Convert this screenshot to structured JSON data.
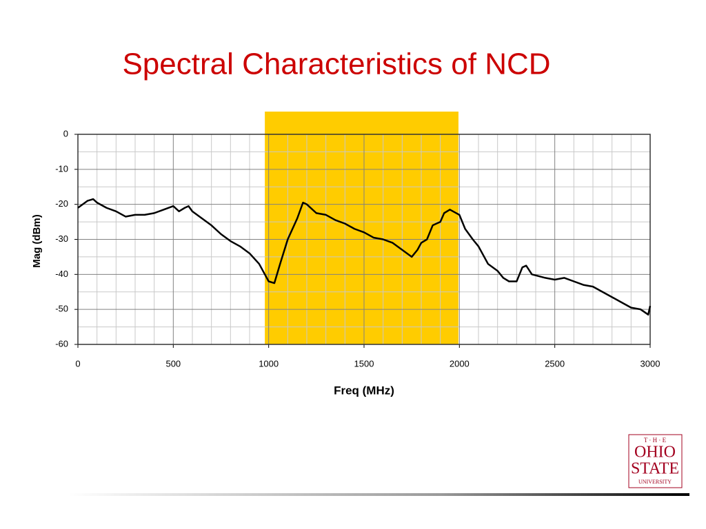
{
  "chart_data": {
    "type": "line",
    "title": "Spectral Characteristics of NCD",
    "xlabel": "Freq (MHz)",
    "ylabel": "Mag (dBm)",
    "x": [
      0,
      50,
      80,
      100,
      150,
      200,
      250,
      300,
      350,
      400,
      450,
      500,
      530,
      560,
      580,
      600,
      650,
      700,
      750,
      800,
      850,
      900,
      950,
      980,
      1000,
      1030,
      1060,
      1100,
      1150,
      1180,
      1200,
      1250,
      1300,
      1350,
      1400,
      1450,
      1500,
      1550,
      1600,
      1650,
      1700,
      1750,
      1780,
      1800,
      1830,
      1860,
      1900,
      1920,
      1950,
      2000,
      2030,
      2070,
      2100,
      2150,
      2200,
      2230,
      2260,
      2300,
      2330,
      2350,
      2380,
      2450,
      2500,
      2550,
      2600,
      2650,
      2700,
      2750,
      2800,
      2850,
      2900,
      2950,
      2990,
      3000
    ],
    "values": [
      -21,
      -19,
      -18.5,
      -19.5,
      -21,
      -22,
      -23.5,
      -23,
      -23,
      -22.5,
      -21.5,
      -20.5,
      -22,
      -21,
      -20.5,
      -22,
      -24,
      -26,
      -28.5,
      -30.5,
      -32,
      -34,
      -37,
      -40,
      -42,
      -42.5,
      -37,
      -30,
      -24,
      -19.5,
      -20,
      -22.5,
      -23,
      -24.5,
      -25.5,
      -27,
      -28,
      -29.5,
      -30,
      -31,
      -33,
      -35,
      -33,
      -31,
      -30,
      -26,
      -25,
      -22.5,
      -21.5,
      -23,
      -27,
      -30,
      -32,
      -37,
      -39,
      -41,
      -42,
      -42,
      -38,
      -37.5,
      -40,
      -41,
      -41.5,
      -41,
      -42,
      -43,
      -43.5,
      -45,
      -46.5,
      -48,
      -49.5,
      -50,
      -51.5,
      -49
    ],
    "color": "#000000",
    "highlight_range": [
      980,
      1995
    ],
    "highlight_color": "#ffcc00",
    "xlim": [
      0,
      3000
    ],
    "xticks": [
      0,
      500,
      1000,
      1500,
      2000,
      2500,
      3000
    ],
    "ylim": [
      -60,
      0
    ],
    "yticks": [
      0,
      -10,
      -20,
      -30,
      -40,
      -50,
      -60
    ],
    "grid": true
  },
  "logo": {
    "line1": "T · H · E",
    "line2": "OHIO",
    "line3": "STATE",
    "line4": "UNIVERSITY"
  }
}
